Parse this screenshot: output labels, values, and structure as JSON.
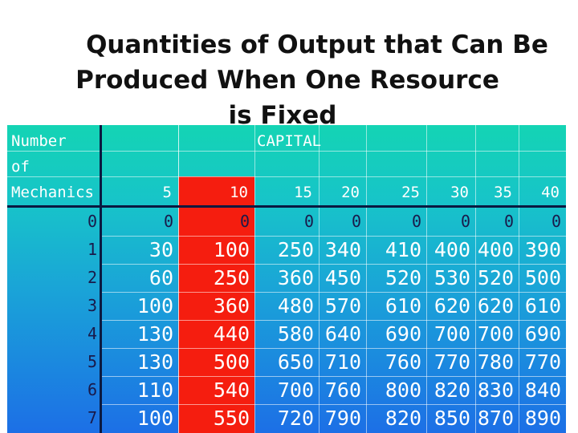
{
  "title": {
    "line1": "Quantities of Output that Can Be",
    "line2": "Produced When One Resource",
    "line3": "is Fixed"
  },
  "table": {
    "row_header": [
      "Number",
      "of",
      "Mechanics"
    ],
    "capital_label": "CAPITAL",
    "capital_values": [
      "5",
      "10",
      "15",
      "20",
      "25",
      "30",
      "35",
      "40"
    ],
    "highlighted_column": "10",
    "highlight_color": "#f51d0f",
    "mechanics": [
      "0",
      "1",
      "2",
      "3",
      "4",
      "5",
      "6",
      "7"
    ],
    "rows": [
      [
        "0",
        "0",
        "0",
        "0",
        "0",
        "0",
        "0",
        "0"
      ],
      [
        "30",
        "100",
        "250",
        "340",
        "410",
        "400",
        "400",
        "390"
      ],
      [
        "60",
        "250",
        "360",
        "450",
        "520",
        "530",
        "520",
        "500"
      ],
      [
        "100",
        "360",
        "480",
        "570",
        "610",
        "620",
        "620",
        "610"
      ],
      [
        "130",
        "440",
        "580",
        "640",
        "690",
        "700",
        "700",
        "690"
      ],
      [
        "130",
        "500",
        "650",
        "710",
        "760",
        "770",
        "780",
        "770"
      ],
      [
        "110",
        "540",
        "700",
        "760",
        "800",
        "820",
        "830",
        "840"
      ],
      [
        "100",
        "550",
        "720",
        "790",
        "820",
        "850",
        "870",
        "890"
      ]
    ]
  }
}
